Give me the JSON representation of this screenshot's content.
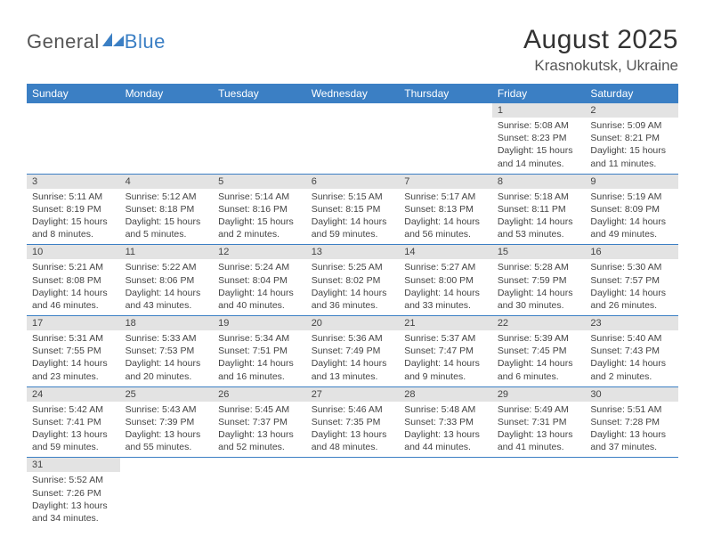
{
  "logo": {
    "part1": "General",
    "part2": "Blue"
  },
  "title": "August 2025",
  "location": "Krasnokutsk, Ukraine",
  "colors": {
    "header_bg": "#3b7fc4",
    "header_text": "#ffffff",
    "daynum_bg": "#e3e3e3",
    "cell_border": "#3b7fc4",
    "text": "#444444"
  },
  "day_headers": [
    "Sunday",
    "Monday",
    "Tuesday",
    "Wednesday",
    "Thursday",
    "Friday",
    "Saturday"
  ],
  "weeks": [
    [
      null,
      null,
      null,
      null,
      null,
      {
        "n": "1",
        "sunrise": "5:08 AM",
        "sunset": "8:23 PM",
        "dl": "15 hours and 14 minutes."
      },
      {
        "n": "2",
        "sunrise": "5:09 AM",
        "sunset": "8:21 PM",
        "dl": "15 hours and 11 minutes."
      }
    ],
    [
      {
        "n": "3",
        "sunrise": "5:11 AM",
        "sunset": "8:19 PM",
        "dl": "15 hours and 8 minutes."
      },
      {
        "n": "4",
        "sunrise": "5:12 AM",
        "sunset": "8:18 PM",
        "dl": "15 hours and 5 minutes."
      },
      {
        "n": "5",
        "sunrise": "5:14 AM",
        "sunset": "8:16 PM",
        "dl": "15 hours and 2 minutes."
      },
      {
        "n": "6",
        "sunrise": "5:15 AM",
        "sunset": "8:15 PM",
        "dl": "14 hours and 59 minutes."
      },
      {
        "n": "7",
        "sunrise": "5:17 AM",
        "sunset": "8:13 PM",
        "dl": "14 hours and 56 minutes."
      },
      {
        "n": "8",
        "sunrise": "5:18 AM",
        "sunset": "8:11 PM",
        "dl": "14 hours and 53 minutes."
      },
      {
        "n": "9",
        "sunrise": "5:19 AM",
        "sunset": "8:09 PM",
        "dl": "14 hours and 49 minutes."
      }
    ],
    [
      {
        "n": "10",
        "sunrise": "5:21 AM",
        "sunset": "8:08 PM",
        "dl": "14 hours and 46 minutes."
      },
      {
        "n": "11",
        "sunrise": "5:22 AM",
        "sunset": "8:06 PM",
        "dl": "14 hours and 43 minutes."
      },
      {
        "n": "12",
        "sunrise": "5:24 AM",
        "sunset": "8:04 PM",
        "dl": "14 hours and 40 minutes."
      },
      {
        "n": "13",
        "sunrise": "5:25 AM",
        "sunset": "8:02 PM",
        "dl": "14 hours and 36 minutes."
      },
      {
        "n": "14",
        "sunrise": "5:27 AM",
        "sunset": "8:00 PM",
        "dl": "14 hours and 33 minutes."
      },
      {
        "n": "15",
        "sunrise": "5:28 AM",
        "sunset": "7:59 PM",
        "dl": "14 hours and 30 minutes."
      },
      {
        "n": "16",
        "sunrise": "5:30 AM",
        "sunset": "7:57 PM",
        "dl": "14 hours and 26 minutes."
      }
    ],
    [
      {
        "n": "17",
        "sunrise": "5:31 AM",
        "sunset": "7:55 PM",
        "dl": "14 hours and 23 minutes."
      },
      {
        "n": "18",
        "sunrise": "5:33 AM",
        "sunset": "7:53 PM",
        "dl": "14 hours and 20 minutes."
      },
      {
        "n": "19",
        "sunrise": "5:34 AM",
        "sunset": "7:51 PM",
        "dl": "14 hours and 16 minutes."
      },
      {
        "n": "20",
        "sunrise": "5:36 AM",
        "sunset": "7:49 PM",
        "dl": "14 hours and 13 minutes."
      },
      {
        "n": "21",
        "sunrise": "5:37 AM",
        "sunset": "7:47 PM",
        "dl": "14 hours and 9 minutes."
      },
      {
        "n": "22",
        "sunrise": "5:39 AM",
        "sunset": "7:45 PM",
        "dl": "14 hours and 6 minutes."
      },
      {
        "n": "23",
        "sunrise": "5:40 AM",
        "sunset": "7:43 PM",
        "dl": "14 hours and 2 minutes."
      }
    ],
    [
      {
        "n": "24",
        "sunrise": "5:42 AM",
        "sunset": "7:41 PM",
        "dl": "13 hours and 59 minutes."
      },
      {
        "n": "25",
        "sunrise": "5:43 AM",
        "sunset": "7:39 PM",
        "dl": "13 hours and 55 minutes."
      },
      {
        "n": "26",
        "sunrise": "5:45 AM",
        "sunset": "7:37 PM",
        "dl": "13 hours and 52 minutes."
      },
      {
        "n": "27",
        "sunrise": "5:46 AM",
        "sunset": "7:35 PM",
        "dl": "13 hours and 48 minutes."
      },
      {
        "n": "28",
        "sunrise": "5:48 AM",
        "sunset": "7:33 PM",
        "dl": "13 hours and 44 minutes."
      },
      {
        "n": "29",
        "sunrise": "5:49 AM",
        "sunset": "7:31 PM",
        "dl": "13 hours and 41 minutes."
      },
      {
        "n": "30",
        "sunrise": "5:51 AM",
        "sunset": "7:28 PM",
        "dl": "13 hours and 37 minutes."
      }
    ],
    [
      {
        "n": "31",
        "sunrise": "5:52 AM",
        "sunset": "7:26 PM",
        "dl": "13 hours and 34 minutes."
      },
      null,
      null,
      null,
      null,
      null,
      null
    ]
  ],
  "labels": {
    "sunrise": "Sunrise: ",
    "sunset": "Sunset: ",
    "daylight": "Daylight: "
  }
}
